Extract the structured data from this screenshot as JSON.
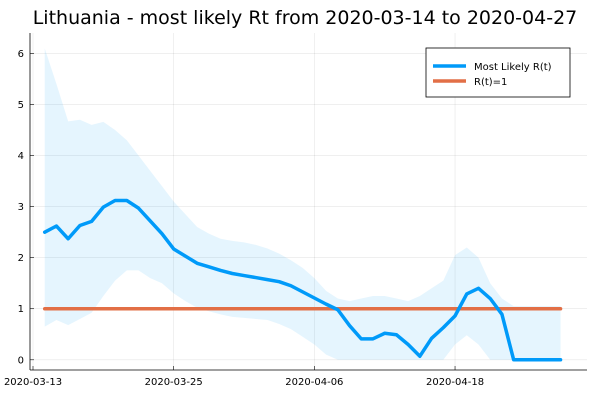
{
  "chart_data": {
    "type": "line",
    "title": "Lithuania - most likely Rt from 2020-03-14 to 2020-04-27",
    "xlabel": "",
    "ylabel": "",
    "x_start": "2020-03-13",
    "x_ticks": [
      {
        "date": "2020-03-13",
        "label": "2020-03-13"
      },
      {
        "date": "2020-03-25",
        "label": "2020-03-25"
      },
      {
        "date": "2020-04-06",
        "label": "2020-04-06"
      },
      {
        "date": "2020-04-18",
        "label": "2020-04-18"
      }
    ],
    "y_ticks": [
      0,
      1,
      2,
      3,
      4,
      5,
      6
    ],
    "xlim": [
      "2020-03-13",
      "2020-04-29"
    ],
    "ylim": [
      -0.2,
      6.4
    ],
    "grid": true,
    "legend_position": "top-right",
    "dates": [
      "2020-03-14",
      "2020-03-15",
      "2020-03-16",
      "2020-03-17",
      "2020-03-18",
      "2020-03-19",
      "2020-03-20",
      "2020-03-21",
      "2020-03-22",
      "2020-03-23",
      "2020-03-24",
      "2020-03-25",
      "2020-03-26",
      "2020-03-27",
      "2020-03-28",
      "2020-03-29",
      "2020-03-30",
      "2020-03-31",
      "2020-04-01",
      "2020-04-02",
      "2020-04-03",
      "2020-04-04",
      "2020-04-05",
      "2020-04-06",
      "2020-04-07",
      "2020-04-08",
      "2020-04-09",
      "2020-04-10",
      "2020-04-11",
      "2020-04-12",
      "2020-04-13",
      "2020-04-14",
      "2020-04-15",
      "2020-04-16",
      "2020-04-17",
      "2020-04-18",
      "2020-04-19",
      "2020-04-20",
      "2020-04-21",
      "2020-04-22",
      "2020-04-23",
      "2020-04-24",
      "2020-04-25",
      "2020-04-26",
      "2020-04-27"
    ],
    "series": [
      {
        "name": "Most Likely R(t)",
        "color": "#009af9",
        "values": [
          2.5,
          2.62,
          2.37,
          2.63,
          2.71,
          2.99,
          3.12,
          3.12,
          2.97,
          2.72,
          2.47,
          2.17,
          2.03,
          1.89,
          1.82,
          1.75,
          1.69,
          1.65,
          1.61,
          1.57,
          1.53,
          1.45,
          1.33,
          1.21,
          1.09,
          0.98,
          0.67,
          0.41,
          0.41,
          0.52,
          0.49,
          0.3,
          0.07,
          0.42,
          0.63,
          0.86,
          1.29,
          1.4,
          1.2,
          0.89,
          0.0,
          0.0,
          0.0,
          0.0,
          0.0
        ]
      },
      {
        "name": "R(t)=1",
        "color": "#e26f46",
        "values": [
          1,
          1,
          1,
          1,
          1,
          1,
          1,
          1,
          1,
          1,
          1,
          1,
          1,
          1,
          1,
          1,
          1,
          1,
          1,
          1,
          1,
          1,
          1,
          1,
          1,
          1,
          1,
          1,
          1,
          1,
          1,
          1,
          1,
          1,
          1,
          1,
          1,
          1,
          1,
          1,
          1,
          1,
          1,
          1,
          1
        ]
      }
    ],
    "band": {
      "color": "#009af9",
      "upper": [
        6.1,
        5.4,
        4.67,
        4.7,
        4.6,
        4.66,
        4.5,
        4.3,
        4.0,
        3.7,
        3.4,
        3.1,
        2.85,
        2.6,
        2.47,
        2.37,
        2.33,
        2.3,
        2.25,
        2.18,
        2.08,
        1.95,
        1.8,
        1.6,
        1.35,
        1.2,
        1.15,
        1.2,
        1.25,
        1.25,
        1.2,
        1.15,
        1.25,
        1.4,
        1.55,
        2.05,
        2.2,
        2.0,
        1.5,
        1.2,
        1.05,
        1.05,
        1.05,
        1.05,
        1.05
      ],
      "lower": [
        0.65,
        0.78,
        0.68,
        0.8,
        0.92,
        1.25,
        1.55,
        1.75,
        1.75,
        1.6,
        1.5,
        1.3,
        1.15,
        1.02,
        0.95,
        0.89,
        0.84,
        0.82,
        0.8,
        0.78,
        0.7,
        0.6,
        0.45,
        0.3,
        0.1,
        0.0,
        0.0,
        0.0,
        0.0,
        0.0,
        0.0,
        0.0,
        0.0,
        0.0,
        0.0,
        0.3,
        0.48,
        0.3,
        0.0,
        0.0,
        0.0,
        0.0,
        0.0,
        0.0,
        0.0
      ]
    }
  }
}
